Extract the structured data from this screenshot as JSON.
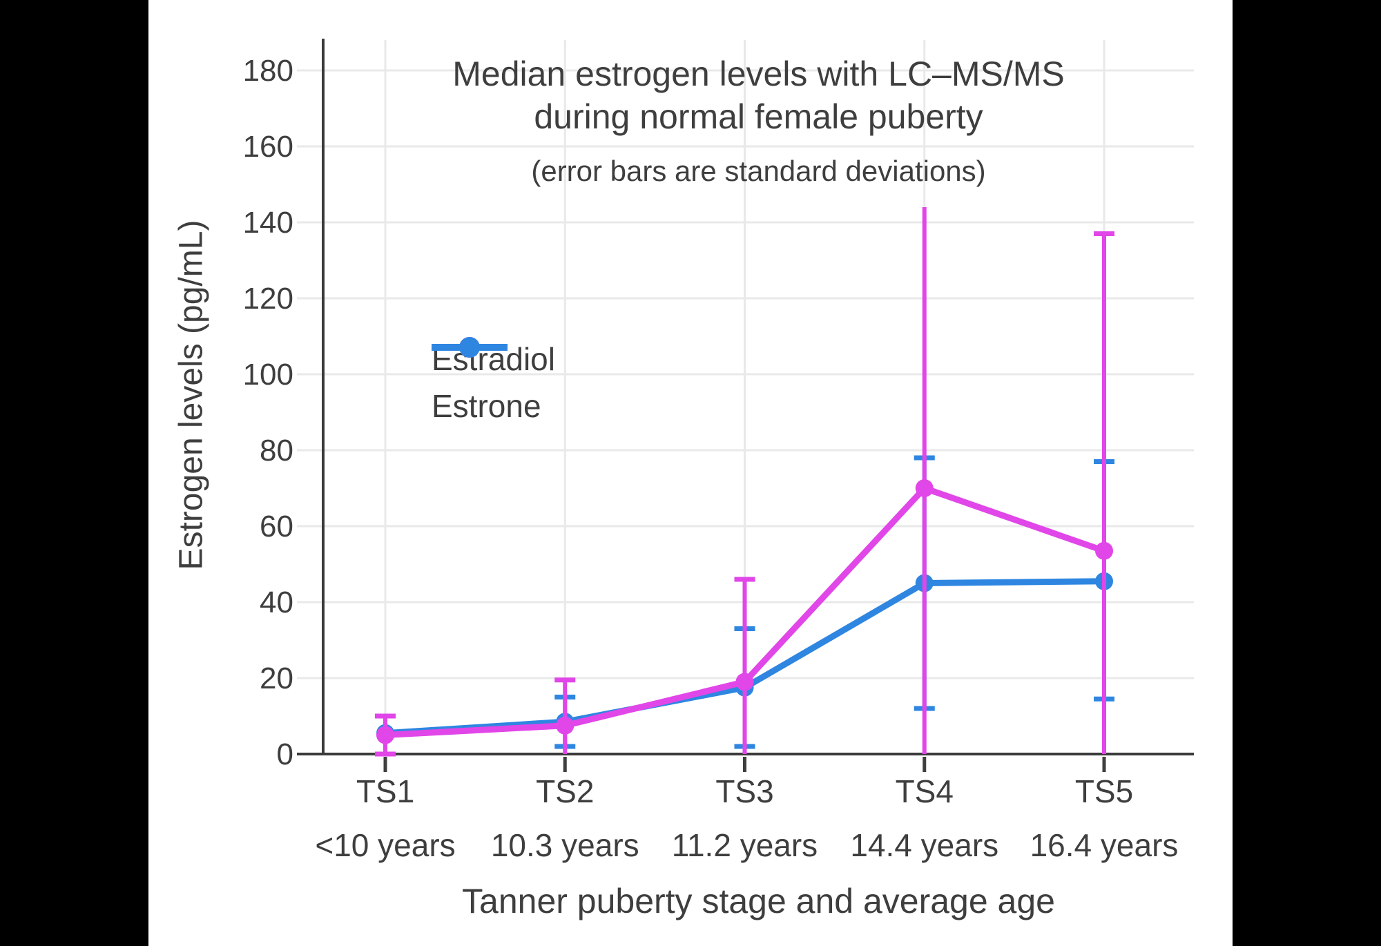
{
  "page": {
    "background_color": "#000000",
    "canvas_color": "#ffffff",
    "text_color": "#3e3e3e",
    "gridline_color": "#e9e9e9",
    "axis_color": "#3a3a3a"
  },
  "chart_data": {
    "type": "line",
    "title_line1": "Median estrogen levels with LC–MS/MS",
    "title_line2": "during normal female puberty",
    "subtitle": "(error bars are standard deviations)",
    "xlabel": "Tanner puberty stage and average age",
    "ylabel": "Estrogen levels (pg/mL)",
    "categories": [
      "TS1",
      "TS2",
      "TS3",
      "TS4",
      "TS5"
    ],
    "category_sublabels": [
      "<10 years",
      "10.3 years",
      "11.2 years",
      "14.4 years",
      "16.4 years"
    ],
    "y_ticks": [
      0,
      20,
      40,
      60,
      80,
      100,
      120,
      140,
      160,
      180
    ],
    "ylim": [
      0,
      188
    ],
    "grid": true,
    "legend_position": "inside-upper-left",
    "series": [
      {
        "name": "Estrone",
        "color": "#2e86e1",
        "values": [
          5.5,
          8.5,
          17.5,
          45,
          45.5
        ],
        "error_high": [
          null,
          15,
          33,
          78,
          77
        ],
        "error_low": [
          null,
          2,
          2,
          12,
          14.5
        ],
        "caps_high": [
          false,
          true,
          true,
          true,
          true
        ],
        "caps_low": [
          false,
          true,
          true,
          true,
          true
        ]
      },
      {
        "name": "Estradiol",
        "color": "#e146e8",
        "values": [
          5,
          7.5,
          19,
          70,
          53.5
        ],
        "error_high": [
          10,
          19.5,
          46,
          144,
          137
        ],
        "error_low": [
          0,
          0,
          0,
          0,
          0
        ],
        "caps_high": [
          true,
          true,
          true,
          false,
          true
        ],
        "caps_low": [
          true,
          false,
          false,
          false,
          false
        ]
      }
    ]
  }
}
